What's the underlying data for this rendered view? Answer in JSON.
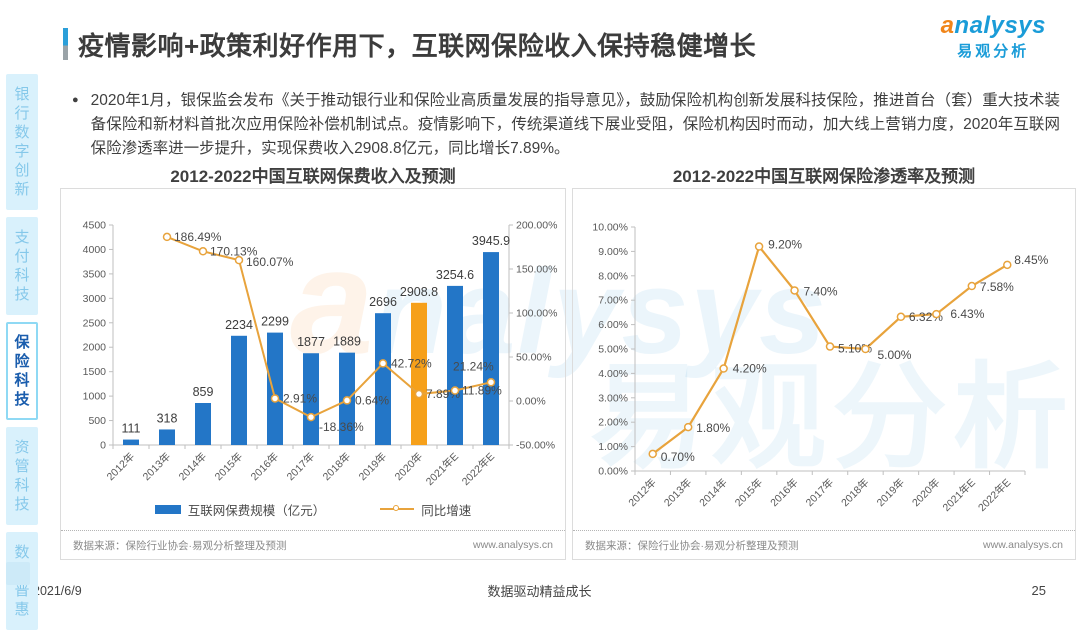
{
  "colors": {
    "bar_blue": "#2376c7",
    "bar_highlight_orange": "#f6a01a",
    "line_orange": "#e8a33c",
    "axis_gray": "#bfbfbf",
    "accent_blue": "#2b9fd9",
    "logo_blue": "#1a9cd8",
    "logo_orange": "#f08519"
  },
  "header": {
    "title": "疫情影响+政策利好作用下，互联网保险收入保持稳健增长",
    "logo": {
      "text": "analysys",
      "text_cn": "易观分析"
    }
  },
  "sidebar": {
    "items": [
      {
        "label": "银行数字创新",
        "active": false
      },
      {
        "label": "支付科技",
        "active": false
      },
      {
        "label": "保险科技",
        "active": true
      },
      {
        "label": "资管科技",
        "active": false
      },
      {
        "label": "数字普惠",
        "active": false
      }
    ]
  },
  "para": {
    "bullet": "●",
    "text": "2020年1月，银保监会发布《关于推动银行业和保险业高质量发展的指导意见》，鼓励保险机构创新发展科技保险，推进首台（套）重大技术装备保险和新材料首批次应用保险补偿机制试点。疫情影响下，传统渠道线下展业受阻，保险机构因时而动，加大线上营销力度，2020年互联网保险渗透率进一步提升，实现保费收入2908.8亿元，同比增长7.89%。"
  },
  "chart_data": [
    {
      "type": "bar",
      "title": "2012-2022中国互联网保费收入及预测",
      "categories": [
        "2012年",
        "2013年",
        "2014年",
        "2015年",
        "2016年",
        "2017年",
        "2018年",
        "2019年",
        "2020年",
        "2021年E",
        "2022年E"
      ],
      "series": [
        {
          "name": "互联网保费规模（亿元）",
          "type": "bar",
          "values": [
            111,
            318,
            859,
            2234,
            2299,
            1877,
            1889,
            2696,
            2908.8,
            3254.6,
            3945.9
          ],
          "highlight_index": 8
        },
        {
          "name": "同比增速",
          "type": "line",
          "unit": "%",
          "values": [
            null,
            186.49,
            170.13,
            160.07,
            2.91,
            -18.36,
            0.64,
            42.72,
            7.89,
            11.89,
            21.24
          ]
        }
      ],
      "y_left": {
        "min": 0,
        "max": 4500,
        "step": 500
      },
      "y_right": {
        "min": -50,
        "max": 200,
        "step": 50,
        "format": "percent"
      },
      "grid": false,
      "legend_position": "bottom",
      "source": "数据来源：保险行业协会·易观分析整理及预测",
      "url": "www.analysys.cn"
    },
    {
      "type": "line",
      "title": "2012-2022中国互联网保险渗透率及预测",
      "categories": [
        "2012年",
        "2013年",
        "2014年",
        "2015年",
        "2016年",
        "2017年",
        "2018年",
        "2019年",
        "2020年",
        "2021年E",
        "2022年E"
      ],
      "series": [
        {
          "name": "互联网保险渗透率",
          "type": "line",
          "unit": "%",
          "values": [
            0.7,
            1.8,
            4.2,
            9.2,
            7.4,
            5.1,
            5.0,
            6.32,
            6.43,
            7.58,
            8.45
          ]
        }
      ],
      "y_left": {
        "min": 0,
        "max": 10,
        "step": 1,
        "format": "percent"
      },
      "grid": false,
      "legend_position": "none",
      "source": "数据来源：保险行业协会·易观分析整理及预测",
      "url": "www.analysys.cn"
    }
  ],
  "footer": {
    "date": "2021/6/9",
    "motto": "数据驱动精益成长",
    "page": "25"
  }
}
